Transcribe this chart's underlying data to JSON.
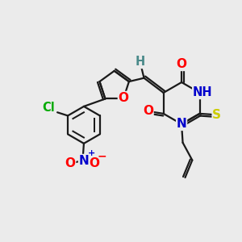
{
  "bg_color": "#ebebeb",
  "bond_color": "#1a1a1a",
  "atom_colors": {
    "O": "#ff0000",
    "N": "#0000cc",
    "S": "#cccc00",
    "Cl": "#00aa00",
    "H": "#4a8a8a",
    "C": "#1a1a1a"
  },
  "lw": 1.6
}
